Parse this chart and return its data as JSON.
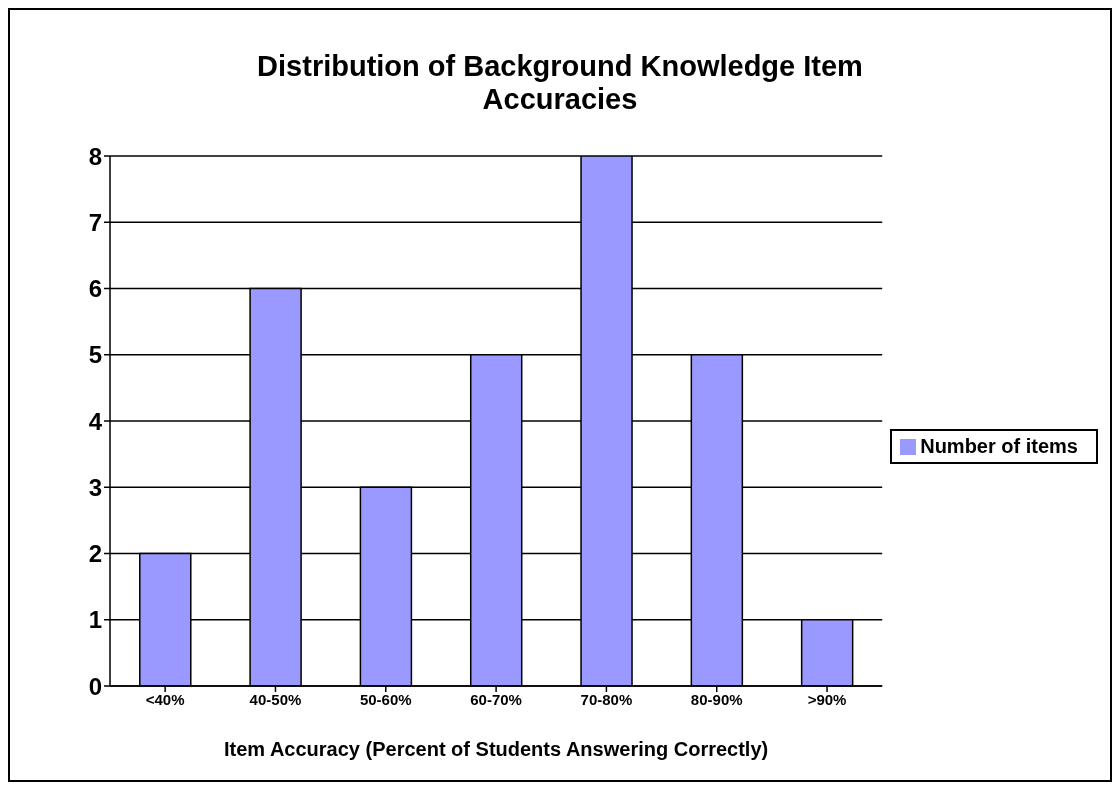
{
  "chart_data": {
    "type": "bar",
    "title": "Distribution of Background Knowledge Item Accuracies",
    "xlabel": "Item Accuracy (Percent of Students Answering Correctly)",
    "categories": [
      "<40%",
      "40-50%",
      "50-60%",
      "60-70%",
      "70-80%",
      "80-90%",
      ">90%"
    ],
    "series": [
      {
        "name": "Number of items",
        "color": "#9999ff",
        "values": [
          2,
          6,
          3,
          5,
          8,
          5,
          1
        ]
      }
    ],
    "ylim": [
      0,
      8
    ],
    "yticks": [
      0,
      1,
      2,
      3,
      4,
      5,
      6,
      7,
      8
    ],
    "grid": "y",
    "legend": "right"
  }
}
